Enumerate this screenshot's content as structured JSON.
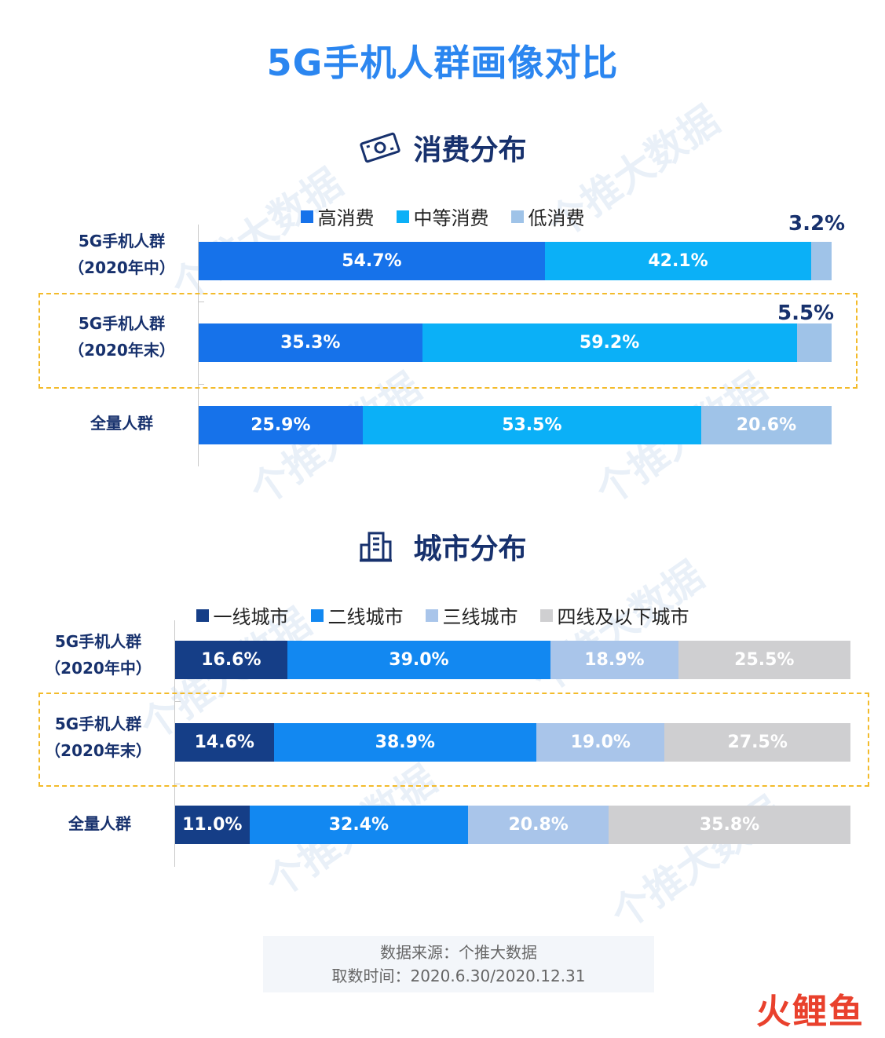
{
  "title": "5G手机人群画像对比",
  "colors": {
    "title": "#2b86f0",
    "heading": "#17316d",
    "highlight": "#f3bb2b"
  },
  "consumption": {
    "heading": "消费分布",
    "icon": "money-icon",
    "legend": [
      "高消费",
      "中等消费",
      "低消费"
    ],
    "colors": [
      "#1672ea",
      "#0bb0f7",
      "#9fc3e8"
    ]
  },
  "city": {
    "heading": "城市分布",
    "icon": "building-icon",
    "legend": [
      "一线城市",
      "二线城市",
      "三线城市",
      "四线及以下城市"
    ],
    "colors": [
      "#153e87",
      "#1288f1",
      "#a9c5ea",
      "#cfcfd1"
    ]
  },
  "chart_data": [
    {
      "type": "bar",
      "orientation": "horizontal",
      "stacked": true,
      "title": "消费分布",
      "categories": [
        "5G手机人群（2020年中）",
        "5G手机人群（2020年末）",
        "全量人群"
      ],
      "series": [
        {
          "name": "高消费",
          "values": [
            54.7,
            35.3,
            25.9
          ]
        },
        {
          "name": "中等消费",
          "values": [
            42.1,
            59.2,
            53.5
          ]
        },
        {
          "name": "低消费",
          "values": [
            3.2,
            5.5,
            20.6
          ]
        }
      ],
      "data_labels": [
        [
          "54.7%",
          "42.1%",
          "3.2%"
        ],
        [
          "35.3%",
          "59.2%",
          "5.5%"
        ],
        [
          "25.9%",
          "53.5%",
          "20.6%"
        ]
      ],
      "legend_position": "top",
      "xlim": [
        0,
        100
      ]
    },
    {
      "type": "bar",
      "orientation": "horizontal",
      "stacked": true,
      "title": "城市分布",
      "categories": [
        "5G手机人群（2020年中）",
        "5G手机人群（2020年末）",
        "全量人群"
      ],
      "series": [
        {
          "name": "一线城市",
          "values": [
            16.6,
            14.6,
            11.0
          ]
        },
        {
          "name": "二线城市",
          "values": [
            39.0,
            38.9,
            32.4
          ]
        },
        {
          "name": "三线城市",
          "values": [
            18.9,
            19.0,
            20.8
          ]
        },
        {
          "name": "四线及以下城市",
          "values": [
            25.5,
            27.5,
            35.8
          ]
        }
      ],
      "data_labels": [
        [
          "16.6%",
          "39.0%",
          "18.9%",
          "25.5%"
        ],
        [
          "14.6%",
          "38.9%",
          "19.0%",
          "27.5%"
        ],
        [
          "11.0%",
          "32.4%",
          "20.8%",
          "35.8%"
        ]
      ],
      "legend_position": "top",
      "xlim": [
        0,
        100
      ]
    }
  ],
  "row_labels": {
    "r1": [
      "5G手机人群",
      "（2020年中）"
    ],
    "r2": [
      "5G手机人群",
      "（2020年末）"
    ],
    "r3": [
      "全量人群"
    ]
  },
  "source": {
    "line1": "数据来源：个推大数据",
    "line2": "取数时间：2020.6.30/2020.12.31"
  },
  "watermark": "个推大数据",
  "brand": {
    "text1": "火",
    "text2": "鲤鱼"
  }
}
